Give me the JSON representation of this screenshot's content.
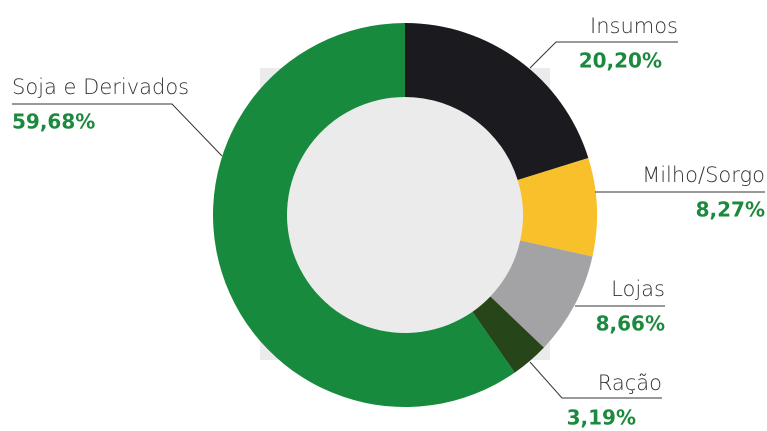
{
  "chart_data": {
    "type": "donut",
    "categories": [
      "Insumos",
      "Milho/Sorgo",
      "Lojas",
      "Ração",
      "Soja e Derivados"
    ],
    "values": [
      20.2,
      8.27,
      8.66,
      3.19,
      59.68
    ],
    "value_labels": [
      "20,20%",
      "8,27%",
      "8,66%",
      "3,19%",
      "59,68%"
    ],
    "colors": [
      "#1b1a1f",
      "#f8c02b",
      "#a3a3a6",
      "#26461a",
      "#178a3e"
    ]
  }
}
